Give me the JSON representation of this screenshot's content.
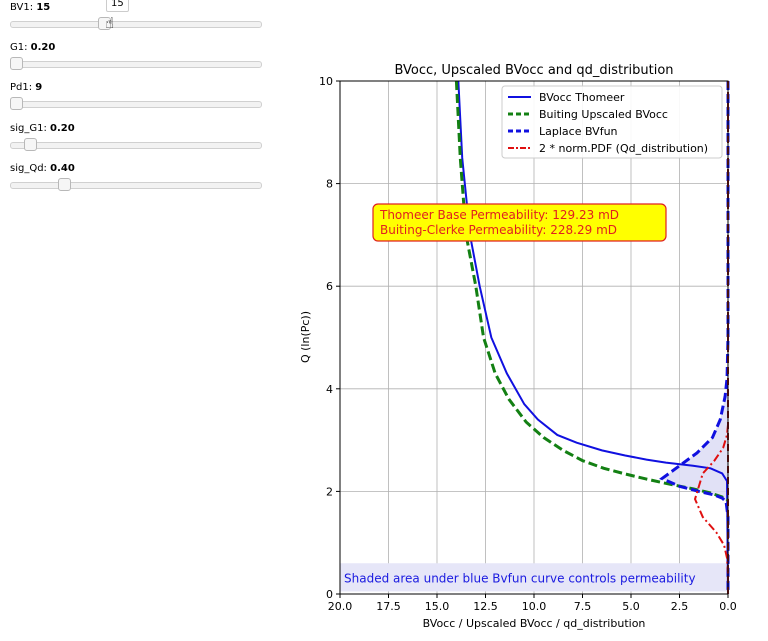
{
  "sliders": [
    {
      "label": "BV1:",
      "value": "15",
      "fraction": 0.37,
      "tooltip": "15"
    },
    {
      "label": "G1:",
      "value": "0.20",
      "fraction": 0.0
    },
    {
      "label": "Pd1:",
      "value": "9",
      "fraction": 0.0
    },
    {
      "label": "sig_G1:",
      "value": "0.20",
      "fraction": 0.06
    },
    {
      "label": "sig_Qd:",
      "value": "0.40",
      "fraction": 0.2
    }
  ],
  "chart_data": {
    "type": "line",
    "title": "BVocc, Upscaled BVocc and qd_distribution",
    "xlabel": "BVocc / Upscaled BVocc / qd_distribution",
    "ylabel": "Q (ln(Pc))",
    "xlim": [
      20.0,
      0.0
    ],
    "ylim": [
      0,
      10
    ],
    "x_inverted": true,
    "grid": true,
    "x_ticks": [
      "20.0",
      "17.5",
      "15.0",
      "12.5",
      "10.0",
      "7.5",
      "5.0",
      "2.5",
      "0.0"
    ],
    "x_tick_values": [
      20,
      17.5,
      15,
      12.5,
      10,
      7.5,
      5,
      2.5,
      0
    ],
    "y_ticks": [
      "0",
      "2",
      "4",
      "6",
      "8",
      "10"
    ],
    "y_tick_values": [
      0,
      2,
      4,
      6,
      8,
      10
    ],
    "legend_position": "top-right",
    "series": [
      {
        "name": "BVocc Thomeer",
        "color": "#1010e0",
        "style": "solid",
        "x": [
          13.9,
          13.7,
          13.3,
          12.8,
          12.2,
          11.4,
          10.5,
          9.8,
          8.8,
          7.8,
          6.5,
          5.3,
          4.2,
          3.2,
          1.8,
          0.9,
          0.3,
          0.05,
          0.0
        ],
        "y": [
          10,
          8.5,
          7.0,
          6.0,
          5.0,
          4.3,
          3.7,
          3.4,
          3.1,
          2.95,
          2.8,
          2.7,
          2.62,
          2.56,
          2.5,
          2.45,
          2.35,
          2.2,
          0.0
        ]
      },
      {
        "name": "Buiting Upscaled BVocc",
        "color": "#138013",
        "style": "dashed",
        "x": [
          14.0,
          13.8,
          13.5,
          13.0,
          12.6,
          12.0,
          11.3,
          10.4,
          9.5,
          8.5,
          7.5,
          6.4,
          5.3,
          4.2,
          3.0,
          1.8,
          0.9,
          0.3,
          0.0
        ],
        "y": [
          10,
          8.5,
          7.0,
          6.0,
          5.0,
          4.3,
          3.8,
          3.35,
          3.05,
          2.8,
          2.6,
          2.45,
          2.34,
          2.24,
          2.14,
          2.05,
          1.97,
          1.89,
          1.83
        ]
      },
      {
        "name": "Laplace BVfun",
        "color": "#1010e0",
        "style": "dashed",
        "x": [
          0.0,
          0.0,
          0.05,
          0.15,
          0.4,
          0.8,
          1.6,
          2.5,
          3.4,
          2.5,
          1.5,
          0.7,
          0.3,
          0.1,
          0.0,
          0.0
        ],
        "y": [
          10,
          5.0,
          4.2,
          3.85,
          3.4,
          3.05,
          2.75,
          2.5,
          2.25,
          2.1,
          2.0,
          1.93,
          1.87,
          1.8,
          1.5,
          0.0
        ]
      },
      {
        "name": "2 * norm.PDF (Qd_distribution)",
        "color": "#e01010",
        "style": "dashdot",
        "x": [
          0.0,
          0.05,
          0.25,
          0.7,
          1.3,
          1.7,
          1.3,
          0.6,
          0.2,
          0.05,
          0.0
        ],
        "y": [
          3.3,
          3.1,
          2.85,
          2.6,
          2.35,
          1.85,
          1.5,
          1.2,
          0.95,
          0.7,
          0.4
        ]
      }
    ],
    "annotation": {
      "line1": "Thomeer Base Permeability: 129.23 mD",
      "line2": "Buiting-Clerke Permeability: 228.29 mD"
    },
    "shaded_note": "Shaded area under blue Bvfun curve controls permeability",
    "colors": {
      "annotation_fill": "#ffff00",
      "annotation_border": "#e02020",
      "annotation_text": "#e02020",
      "note_fill": "#e6e6f8",
      "note_text": "#1a1ae0",
      "shade": "#dcdcf4",
      "vline": "#8b1a1a"
    }
  }
}
